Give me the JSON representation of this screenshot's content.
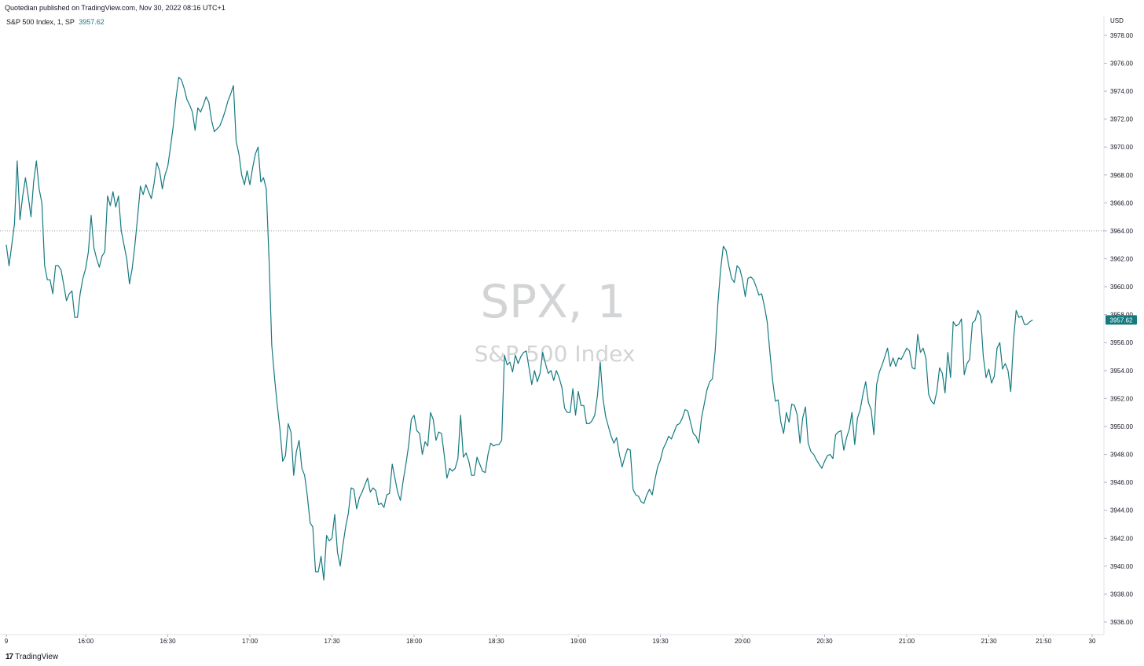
{
  "header": {
    "published": "Quotedian published on TradingView.com, Nov 30, 2022 08:16 UTC+1",
    "symbol_label": "S&P 500 Index, 1, SP",
    "last_price": "3957.62"
  },
  "watermark": {
    "line1": "SPX, 1",
    "line2": "S&P 500 Index"
  },
  "footer": {
    "logo_text": "TradingView",
    "logo_mark": "17"
  },
  "colors": {
    "line": "#157a80",
    "price_tag": "#157a80",
    "grid_dotted": "#9aa0a6"
  },
  "chart_data": {
    "type": "line",
    "currency": "USD",
    "x_ticks": [
      "9",
      "16:00",
      "16:30",
      "17:00",
      "17:30",
      "18:00",
      "18:30",
      "19:00",
      "19:30",
      "20:00",
      "20:30",
      "21:00",
      "21:30",
      "21:50",
      "30"
    ],
    "y_ticks": [
      "3978.00",
      "3976.00",
      "3974.00",
      "3972.00",
      "3970.00",
      "3968.00",
      "3966.00",
      "3964.00",
      "3962.00",
      "3960.00",
      "3958.00",
      "3956.00",
      "3954.00",
      "3952.00",
      "3950.00",
      "3948.00",
      "3946.00",
      "3944.00",
      "3942.00",
      "3940.00",
      "3938.00",
      "3936.00"
    ],
    "ylim": [
      3935.1,
      3979.4
    ],
    "reference_line": 3964.0,
    "last_value": 3957.62,
    "series": [
      {
        "x_start": "15:31",
        "interval_minutes": 1,
        "values": [
          3963,
          3961.5,
          3963,
          3964.5,
          3969,
          3964.8,
          3966.5,
          3967.8,
          3966.5,
          3965,
          3967.5,
          3969,
          3967,
          3966,
          3961.5,
          3960.5,
          3960.5,
          3959.5,
          3961.5,
          3961.5,
          3961.2,
          3960.1,
          3959,
          3959.5,
          3959.7,
          3957.8,
          3957.8,
          3959.5,
          3960.6,
          3961.3,
          3962.5,
          3965.1,
          3962.8,
          3962,
          3961.4,
          3962.2,
          3962.5,
          3966.5,
          3965.8,
          3966.8,
          3965.7,
          3966.5,
          3964,
          3963,
          3962,
          3960.2,
          3961.3,
          3963,
          3965,
          3967.2,
          3966.6,
          3967.3,
          3966.8,
          3966.3,
          3967.4,
          3968.9,
          3968.3,
          3967,
          3968,
          3968.6,
          3970,
          3971.5,
          3973.5,
          3975,
          3974.8,
          3974.2,
          3973.4,
          3973,
          3972.5,
          3971.2,
          3972.8,
          3972.5,
          3973,
          3973.6,
          3973.2,
          3971.9,
          3971.1,
          3971.3,
          3971.5,
          3972,
          3972.6,
          3973.3,
          3973.8,
          3974.4,
          3970.4,
          3969.5,
          3968,
          3967.3,
          3968.3,
          3967.3,
          3968.5,
          3969.5,
          3970,
          3967.5,
          3967.8,
          3967,
          3962,
          3955.8,
          3953.5,
          3951.5,
          3949.8,
          3947.5,
          3947.9,
          3950.2,
          3949.6,
          3946.5,
          3948.2,
          3949,
          3947,
          3946.5,
          3945,
          3943.1,
          3942.8,
          3939.6,
          3939.6,
          3940.7,
          3939,
          3942.2,
          3941.8,
          3942,
          3943.7,
          3941,
          3940,
          3941.5,
          3942.8,
          3943.8,
          3945.6,
          3945.5,
          3944.1,
          3944.9,
          3945.3,
          3945.8,
          3946.3,
          3945.3,
          3945.6,
          3945.4,
          3944.4,
          3944.5,
          3944.2,
          3945.1,
          3945.2,
          3947.3,
          3946.3,
          3945.3,
          3944.7,
          3946.1,
          3947.3,
          3948.6,
          3950.5,
          3950.8,
          3949.7,
          3949.5,
          3948,
          3948.9,
          3948.6,
          3951,
          3950.5,
          3949,
          3949.6,
          3949.5,
          3948,
          3946.3,
          3947,
          3946.8,
          3947,
          3947.7,
          3950.8,
          3947.8,
          3948.1,
          3947.5,
          3946.5,
          3946.5,
          3947.8,
          3947.3,
          3946.8,
          3946.7,
          3948,
          3948.8,
          3948.6,
          3948.7,
          3948.7,
          3949,
          3955.1,
          3954.4,
          3954.6,
          3953.9,
          3955.1,
          3954.5,
          3955,
          3955.3,
          3955.4,
          3954.2,
          3953,
          3954,
          3953.2,
          3953.8,
          3955.3,
          3954.5,
          3953.8,
          3954,
          3953.3,
          3954,
          3953.5,
          3952.8,
          3951.3,
          3951,
          3951,
          3952.7,
          3950.8,
          3952.5,
          3951.5,
          3951.5,
          3950.2,
          3950.2,
          3950.4,
          3950.8,
          3952.2,
          3954.6,
          3952,
          3950.7,
          3950,
          3949.3,
          3948.8,
          3949.2,
          3948,
          3947.1,
          3947.8,
          3948.4,
          3948.3,
          3945.5,
          3945.1,
          3945,
          3944.6,
          3944.5,
          3945.1,
          3945.5,
          3945.1,
          3946.2,
          3947.1,
          3947.6,
          3948.4,
          3948.8,
          3949.3,
          3949.1,
          3949.6,
          3950.1,
          3950.2,
          3950.6,
          3951.2,
          3951.1,
          3950.3,
          3949.5,
          3949.3,
          3948.8,
          3950.6,
          3951.6,
          3952.6,
          3953.2,
          3953.4,
          3955.4,
          3958.8,
          3961.2,
          3962.9,
          3962.6,
          3961.5,
          3960.6,
          3960.3,
          3961.5,
          3961.3,
          3960.5,
          3959.3,
          3960.6,
          3960.7,
          3960.5,
          3960,
          3959.4,
          3959.5,
          3958.6,
          3957.5,
          3955.3,
          3953.3,
          3951.8,
          3951.9,
          3950.3,
          3949.5,
          3951,
          3950.3,
          3951.6,
          3951.5,
          3950.8,
          3948.8,
          3950.6,
          3951.4,
          3948.8,
          3948.2,
          3948,
          3947.6,
          3947.3,
          3947,
          3947.5,
          3947.9,
          3948,
          3947.7,
          3949.4,
          3949.6,
          3949.7,
          3948.3,
          3949.2,
          3949.8,
          3951,
          3948.7,
          3950.6,
          3951.2,
          3952.3,
          3953.2,
          3951.7,
          3951.2,
          3949.4,
          3953,
          3953.9,
          3954.4,
          3955,
          3955.6,
          3954.3,
          3954.9,
          3954.3,
          3954.9,
          3954.8,
          3955.2,
          3955.6,
          3955.4,
          3954.2,
          3954.1,
          3956.6,
          3955.3,
          3955.6,
          3954.9,
          3952.3,
          3951.8,
          3951.6,
          3952.5,
          3954.2,
          3953.8,
          3952.4,
          3955.3,
          3953.5,
          3957.5,
          3957.2,
          3957.3,
          3957.7,
          3953.7,
          3954.5,
          3954.8,
          3957.4,
          3957.6,
          3958.3,
          3957.9,
          3955,
          3953.5,
          3954.1,
          3953.1,
          3953.6,
          3955.6,
          3956,
          3954.1,
          3954.5,
          3954,
          3952.5,
          3956.2,
          3958.3,
          3957.8,
          3957.9,
          3957.3,
          3957.3,
          3957.5,
          3957.62
        ]
      }
    ]
  }
}
